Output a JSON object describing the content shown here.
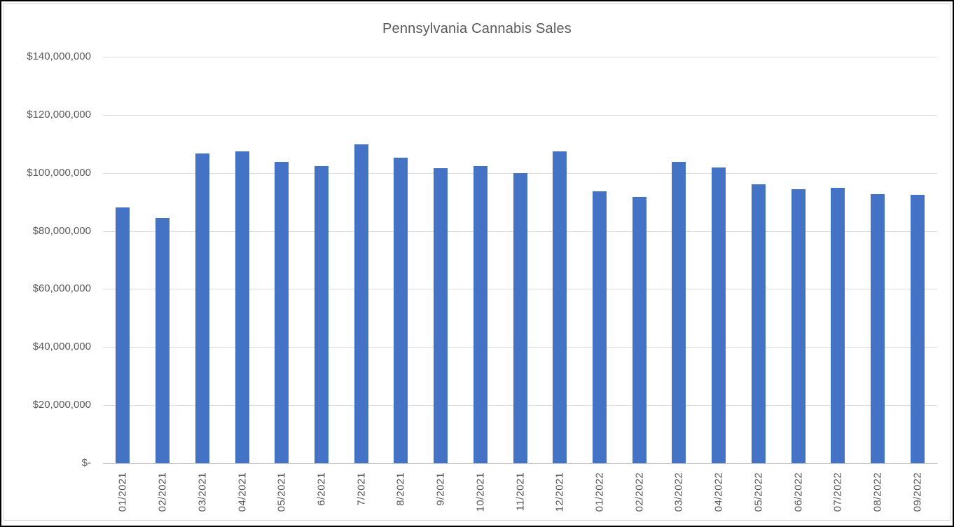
{
  "chart_data": {
    "type": "bar",
    "title": "Pennsylvania Cannabis Sales",
    "categories": [
      "01/2021",
      "02/2021",
      "03/2021",
      "04/2021",
      "05/2021",
      "6/2021",
      "7/2021",
      "8/2021",
      "9/2021",
      "10/2021",
      "11/2021",
      "12/2021",
      "01/2022",
      "02/2022",
      "03/2022",
      "04/2022",
      "05/2022",
      "06/2022",
      "07/2022",
      "08/2022",
      "09/2022"
    ],
    "values": [
      88200000,
      84600000,
      106700000,
      107500000,
      103900000,
      102300000,
      109900000,
      105200000,
      101700000,
      102300000,
      100000000,
      107400000,
      93600000,
      91700000,
      103900000,
      101800000,
      96000000,
      94300000,
      94900000,
      92700000,
      92400000
    ],
    "xlabel": "",
    "ylabel": "",
    "ylim": [
      0,
      140000000
    ],
    "y_tick_interval": 20000000,
    "y_tick_labels": [
      "$-",
      "$20,000,000",
      "$40,000,000",
      "$60,000,000",
      "$80,000,000",
      "$100,000,000",
      "$120,000,000",
      "$140,000,000"
    ],
    "grid": true,
    "legend": "none"
  },
  "colors": {
    "bar": "#4472C4",
    "text": "#595959",
    "gridline": "#DCDCDC",
    "axis_line": "#C6C6C6",
    "chart_border": "#D9D9D9",
    "outer_border": "#000000"
  }
}
